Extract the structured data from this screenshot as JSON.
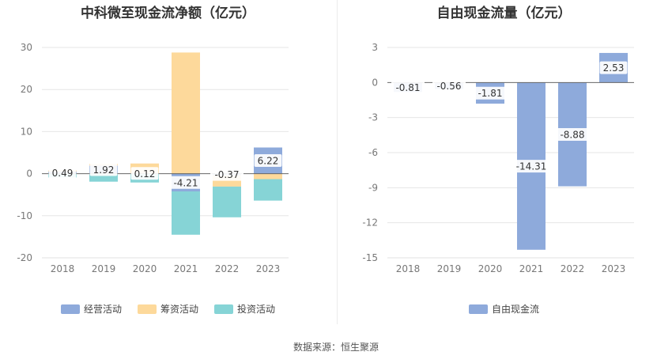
{
  "source": "数据来源：恒生聚源",
  "chart_data": [
    {
      "type": "bar",
      "stacked": true,
      "title": "中科微至现金流净额（亿元）",
      "categories": [
        "2018",
        "2019",
        "2020",
        "2021",
        "2022",
        "2023"
      ],
      "ylim": [
        -20,
        30
      ],
      "yticks": [
        "30",
        "20",
        "10",
        "0",
        "-10",
        "-20"
      ],
      "grid": true,
      "legend_position": "bottom",
      "labeled_series": 0,
      "series": [
        {
          "name": "经营活动",
          "color": "#8eaadb",
          "values": [
            0.49,
            1.92,
            0.12,
            -4.21,
            -0.37,
            6.22
          ],
          "labels": [
            "0.49",
            "1.92",
            "0.12",
            "-4.21",
            "-0.37",
            "6.22"
          ]
        },
        {
          "name": "筹资活动",
          "color": "#fdd99b",
          "values": [
            0.3,
            0.4,
            2.3,
            28.8,
            -2.7,
            -1.3
          ]
        },
        {
          "name": "投资活动",
          "color": "#86d4d6",
          "values": [
            -0.9,
            -1.9,
            -2.1,
            -10.3,
            -7.3,
            -5.1
          ]
        }
      ]
    },
    {
      "type": "bar",
      "title": "自由现金流量（亿元）",
      "categories": [
        "2018",
        "2019",
        "2020",
        "2021",
        "2022",
        "2023"
      ],
      "ylim": [
        -15,
        3
      ],
      "yticks": [
        "3",
        "0",
        "-3",
        "-6",
        "-9",
        "-12",
        "-15"
      ],
      "grid": true,
      "legend_position": "bottom",
      "labeled_series": 0,
      "series": [
        {
          "name": "自由现金流",
          "color": "#8eaadb",
          "values": [
            -0.81,
            -0.56,
            -1.81,
            -14.31,
            -8.88,
            2.53
          ],
          "labels": [
            "-0.81",
            "-0.56",
            "-1.81",
            "-14.31",
            "-8.88",
            "2.53"
          ]
        }
      ]
    }
  ]
}
